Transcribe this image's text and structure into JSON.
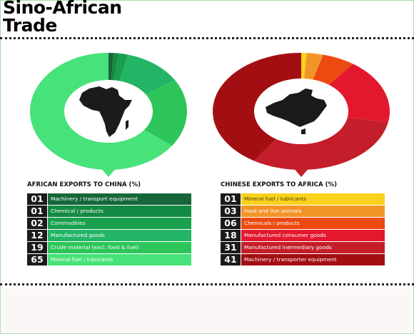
{
  "page": {
    "title_line1": "Sino-African",
    "title_line2": "Trade"
  },
  "chart_data": [
    {
      "type": "pie",
      "title": "AFRICAN EXPORTS TO CHINA (%)",
      "center_icon": "africa-map-icon",
      "rows": [
        {
          "value": "01",
          "label": "Machinery / transport equipment",
          "color": "#16663a",
          "text_color": "#ffffff"
        },
        {
          "value": "01",
          "label": "Chemical / products",
          "color": "#138a43",
          "text_color": "#ffffff"
        },
        {
          "value": "02",
          "label": "Commodities",
          "color": "#19a04e",
          "text_color": "#ffffff"
        },
        {
          "value": "12",
          "label": "Manufactured goods",
          "color": "#24b466",
          "text_color": "#ffffff"
        },
        {
          "value": "19",
          "label": "Crude material (excl. food & fuel)",
          "color": "#2dc559",
          "text_color": "#ffffff"
        },
        {
          "value": "65",
          "label": "Mineral fuel / lubricants",
          "color": "#48e27a",
          "text_color": "#ffffff"
        }
      ]
    },
    {
      "type": "pie",
      "title": "CHINESE EXPORTS TO AFRICA (%)",
      "center_icon": "china-map-icon",
      "rows": [
        {
          "value": "01",
          "label": "Mineral fuel / lubricants",
          "color": "#f8d21c",
          "text_color": "#4a3a00"
        },
        {
          "value": "03",
          "label": "Food and live animals",
          "color": "#f29528",
          "text_color": "#ffffff"
        },
        {
          "value": "06",
          "label": "Chemicals / products",
          "color": "#ec4a10",
          "text_color": "#ffffff"
        },
        {
          "value": "18",
          "label": "Manufactured consumer goods",
          "color": "#e3182e",
          "text_color": "#ffffff"
        },
        {
          "value": "31",
          "label": "Manufactured inermediary goods",
          "color": "#c41e2a",
          "text_color": "#ffffff"
        },
        {
          "value": "41",
          "label": "Machinery / transporter equipment",
          "color": "#a30e12",
          "text_color": "#ffffff"
        }
      ]
    }
  ]
}
